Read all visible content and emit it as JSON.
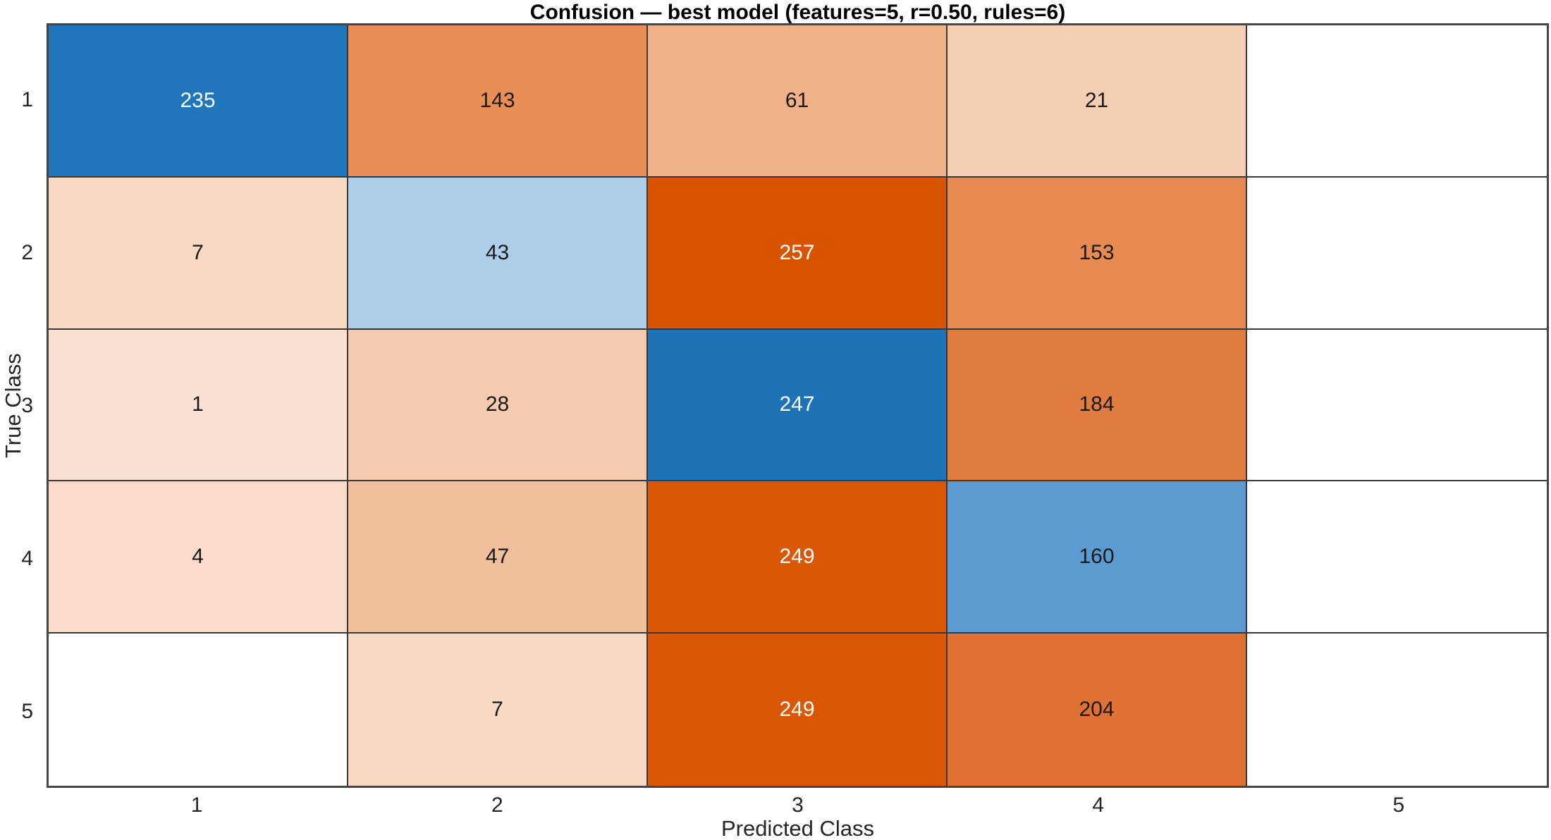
{
  "chart_data": {
    "type": "heatmap",
    "subtype": "confusion-matrix",
    "title": "Confusion — best model (features=5, r=0.50, rules=6)",
    "xlabel": "Predicted Class",
    "ylabel": "True Class",
    "x_ticklabels": [
      "1",
      "2",
      "3",
      "4",
      "5"
    ],
    "y_ticklabels": [
      "1",
      "2",
      "3",
      "4",
      "5"
    ],
    "matrix": [
      [
        235,
        143,
        61,
        21,
        null
      ],
      [
        7,
        43,
        257,
        153,
        null
      ],
      [
        1,
        28,
        247,
        184,
        null
      ],
      [
        4,
        47,
        249,
        160,
        null
      ],
      [
        null,
        7,
        249,
        204,
        null
      ]
    ],
    "cell_bg": [
      [
        "#2176bb",
        "#e88f58",
        "#f0b088",
        "#f5cfb4",
        "#ffffff"
      ],
      [
        "#f8d9c3",
        "#aecde8",
        "#d95400",
        "#e78a51",
        "#ffffff"
      ],
      [
        "#fae1d4",
        "#f4cbae",
        "#1e73b7",
        "#e17c40",
        "#ffffff"
      ],
      [
        "#f9dcca",
        "#f2bf9d",
        "#da5706",
        "#5b9bd0",
        "#ffffff"
      ],
      [
        "#ffffff",
        "#f8d9c3",
        "#da5706",
        "#df7233",
        "#ffffff"
      ]
    ],
    "cell_fg": [
      [
        "#ffffff",
        "#1a1a1a",
        "#1a1a1a",
        "#1a1a1a",
        "#1a1a1a"
      ],
      [
        "#1a1a1a",
        "#1a1a1a",
        "#ffffff",
        "#1a1a1a",
        "#1a1a1a"
      ],
      [
        "#1a1a1a",
        "#1a1a1a",
        "#ffffff",
        "#1a1a1a",
        "#1a1a1a"
      ],
      [
        "#1a1a1a",
        "#1a1a1a",
        "#ffffff",
        "#1a1a1a",
        "#1a1a1a"
      ],
      [
        "#1a1a1a",
        "#1a1a1a",
        "#ffffff",
        "#1a1a1a",
        "#1a1a1a"
      ]
    ],
    "diagonal_base_color": "#1f77b4",
    "offdiagonal_base_color": "#d95419",
    "grid_line_color": "#383838",
    "axis_frame_color": "#454545",
    "background_color": "#ffffff",
    "legend": "none",
    "grid": "on"
  }
}
